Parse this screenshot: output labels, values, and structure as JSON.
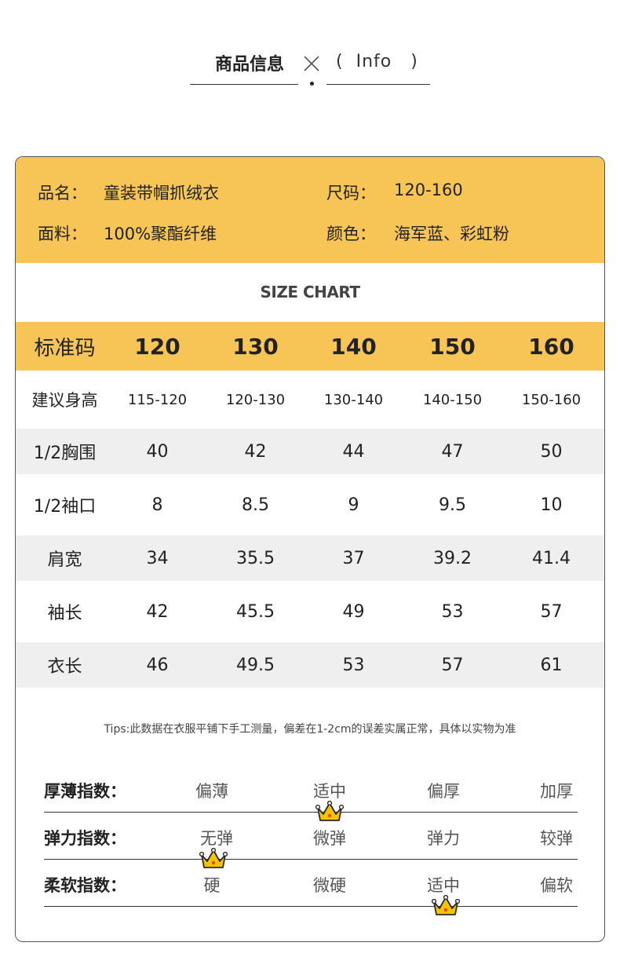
{
  "header": {
    "title": "商品信息",
    "info_open": "(",
    "info_text": "Info",
    "info_close": ")"
  },
  "product_info": {
    "name_label": "品名：",
    "name_value": "童装带帽抓绒衣",
    "size_label": "尺码：",
    "size_value": "120-160",
    "fabric_label": "面料：",
    "fabric_value": "100%聚酯纤维",
    "color_label": "颜色：",
    "color_value": "海军蓝、彩虹粉"
  },
  "size_chart": {
    "title": "SIZE CHART",
    "header": [
      "标准码",
      "120",
      "130",
      "140",
      "150",
      "160"
    ],
    "rows": [
      [
        "建议身高",
        "115-120",
        "120-130",
        "130-140",
        "140-150",
        "150-160"
      ],
      [
        "1/2胸围",
        "40",
        "42",
        "44",
        "47",
        "50"
      ],
      [
        "1/2袖口",
        "8",
        "8.5",
        "9",
        "9.5",
        "10"
      ],
      [
        "肩宽",
        "34",
        "35.5",
        "37",
        "39.2",
        "41.4"
      ],
      [
        "袖长",
        "42",
        "45.5",
        "49",
        "53",
        "57"
      ],
      [
        "衣长",
        "46",
        "49.5",
        "53",
        "57",
        "61"
      ]
    ]
  },
  "tips": "Tips:此数据在衣服平铺下手工测量，偏差在1-2cm的误差实属正常，具体以实物为准",
  "indices": [
    {
      "name": "厚薄指数：",
      "options": [
        "偏薄",
        "适中",
        "偏厚",
        "加厚"
      ],
      "selected": 1
    },
    {
      "name": "弹力指数：",
      "options": [
        "无弹",
        "微弹",
        "弹力",
        "较弹"
      ],
      "selected": 0
    },
    {
      "name": "柔软指数：",
      "options": [
        "硬",
        "微硬",
        "适中",
        "偏软"
      ],
      "selected": 2
    }
  ],
  "colors": {
    "accent": "#f7c556",
    "row_alt": "#efefef",
    "crown": "#f5c400"
  }
}
